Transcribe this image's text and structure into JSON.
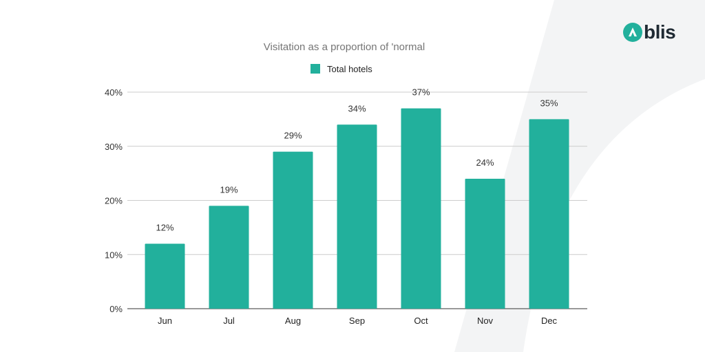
{
  "brand": {
    "name": "blis",
    "accent": "#22b09c"
  },
  "chart_data": {
    "type": "bar",
    "title": "Visitation as a proportion of 'normal",
    "categories": [
      "Jun",
      "Jul",
      "Aug",
      "Sep",
      "Oct",
      "Nov",
      "Dec"
    ],
    "series": [
      {
        "name": "Total hotels",
        "values": [
          12,
          19,
          29,
          34,
          37,
          24,
          35
        ],
        "data_labels": [
          "12%",
          "19%",
          "29%",
          "34%",
          "37%",
          "24%",
          "35%"
        ],
        "color": "#22b09c"
      }
    ],
    "ylim": [
      0,
      40
    ],
    "yticks": [
      0,
      10,
      20,
      30,
      40
    ],
    "ytick_labels": [
      "0%",
      "10%",
      "20%",
      "30%",
      "40%"
    ],
    "grid": true,
    "legend": "top-center",
    "xlabel": "",
    "ylabel": ""
  }
}
